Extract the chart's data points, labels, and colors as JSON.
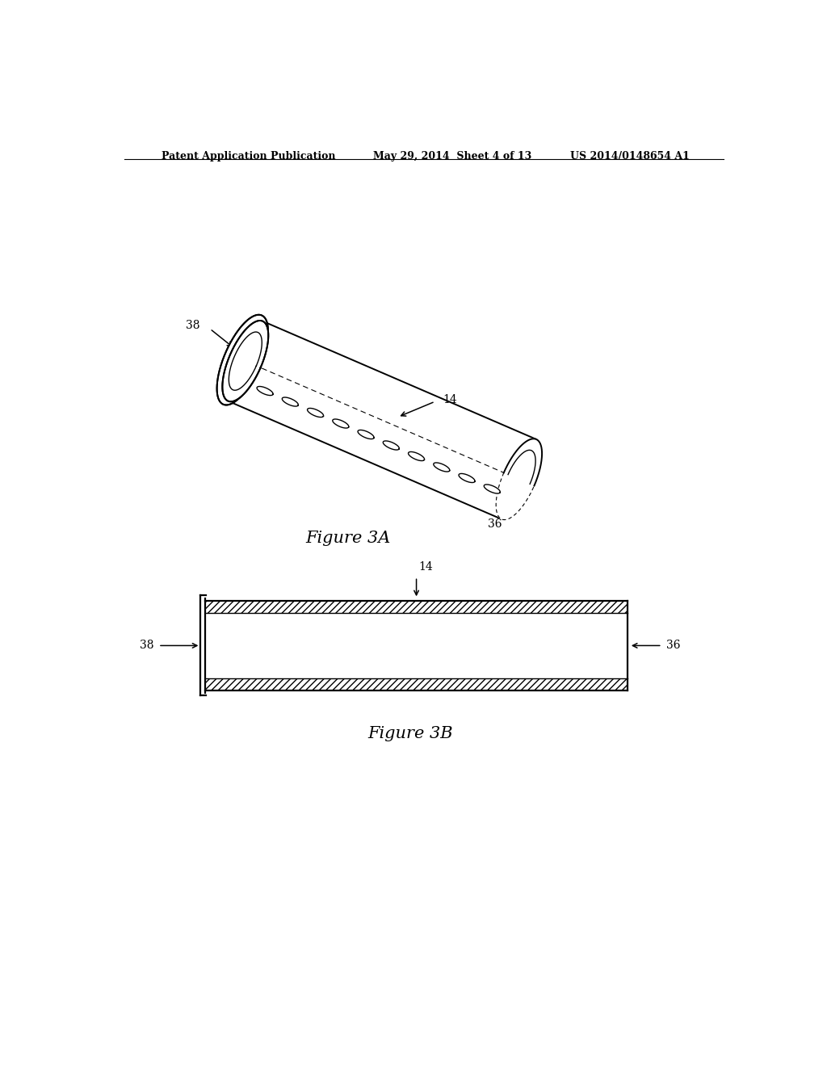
{
  "bg_color": "#ffffff",
  "header_left": "Patent Application Publication",
  "header_mid": "May 29, 2014  Sheet 4 of 13",
  "header_right": "US 2014/0148654 A1",
  "fig3a_label": "Figure 3A",
  "fig3b_label": "Figure 3B",
  "label_14_3a": "14",
  "label_36_3a": "36",
  "label_38_3a": "38",
  "label_14_3b": "14",
  "label_36_3b": "36",
  "label_38_3b": "38",
  "line_color": "#000000",
  "hatch_color": "#000000"
}
